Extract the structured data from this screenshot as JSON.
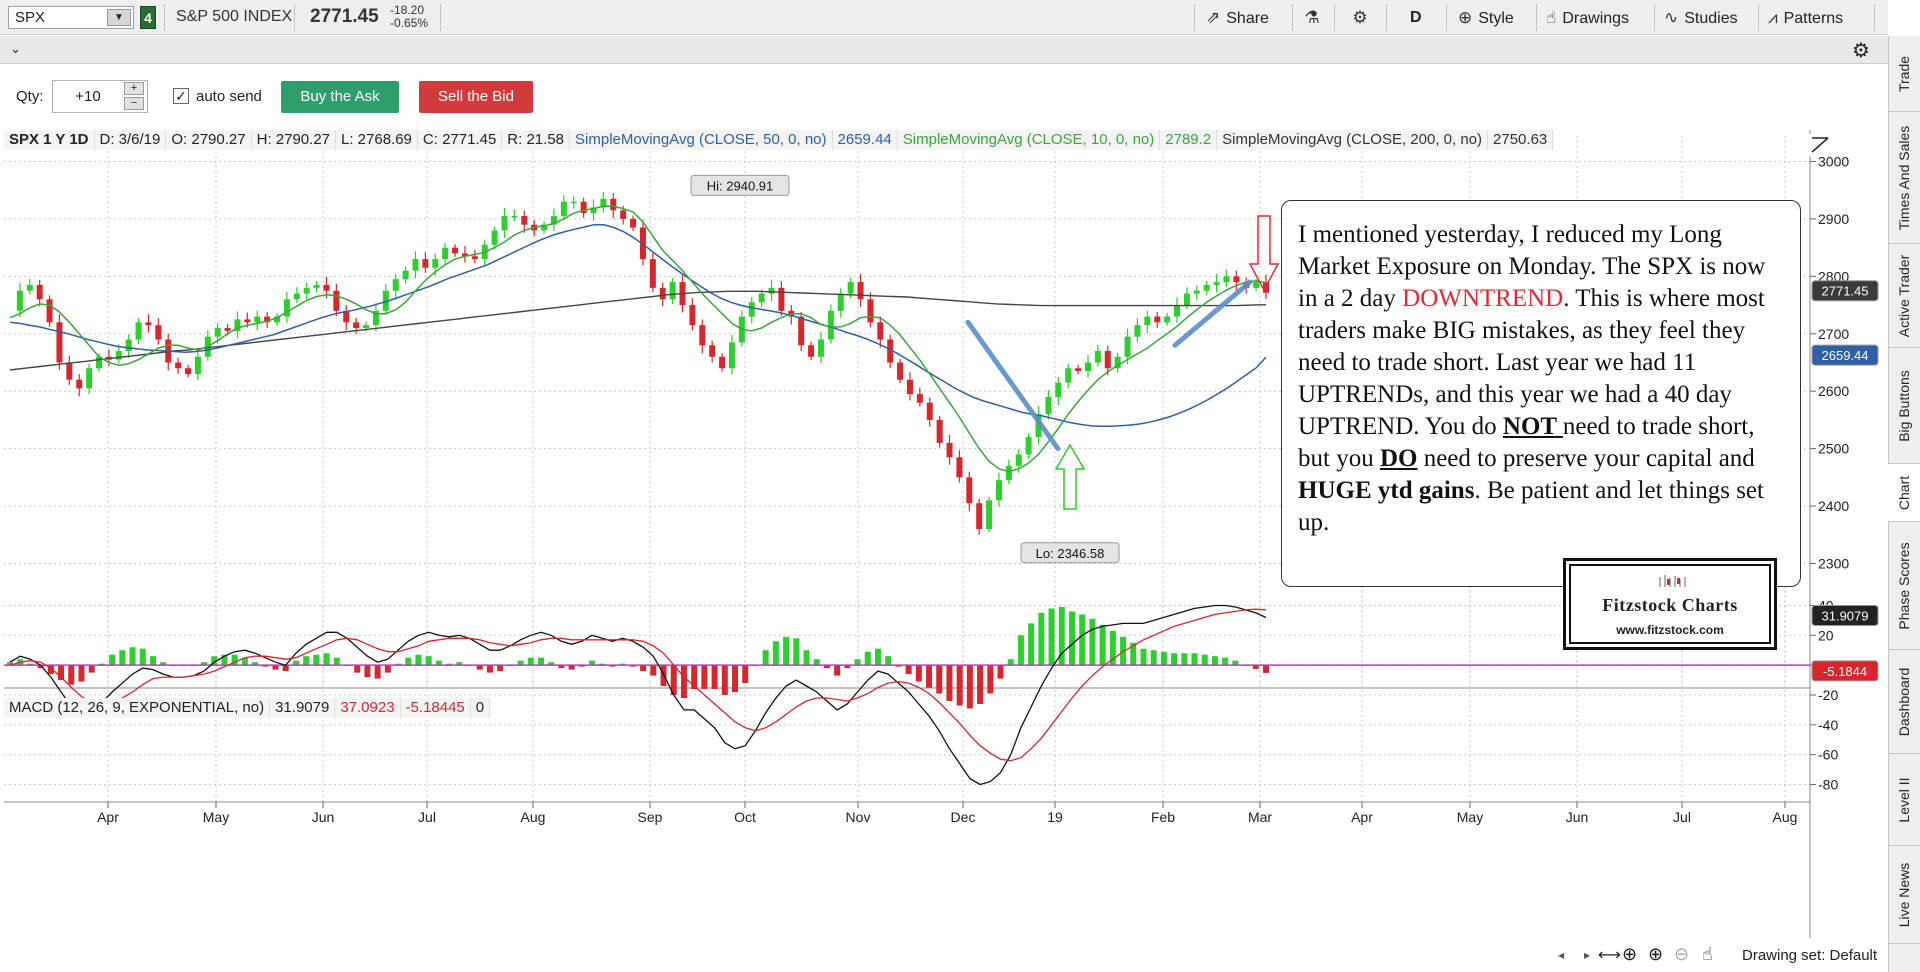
{
  "toolbar": {
    "symbol": "SPX",
    "link_number": "4",
    "index_name": "S&P 500 INDEX",
    "last_price": "2771.45",
    "change": "-18.20",
    "change_pct": "-0.65%",
    "share_label": "Share",
    "period_label": "D",
    "style_label": "Style",
    "drawings_label": "Drawings",
    "studies_label": "Studies",
    "patterns_label": "Patterns"
  },
  "order": {
    "qty_label": "Qty:",
    "qty_value": "+10",
    "auto_send_label": "auto send",
    "auto_send_checked": true,
    "buy_label": "Buy the Ask",
    "sell_label": "Sell the Bid"
  },
  "side_tabs": [
    "Trade",
    "Times And Sales",
    "Active Trader",
    "Big Buttons",
    "Chart",
    "Phase Scores",
    "Dashboard",
    "Level II",
    "Live News"
  ],
  "active_tab": "Chart",
  "legend": {
    "symbol_period": "SPX 1 Y 1D",
    "date": "D: 3/6/19",
    "open": "O: 2790.27",
    "high": "H: 2790.27",
    "low": "L: 2768.69",
    "close": "C: 2771.45",
    "range": "R: 21.58",
    "sma50_label": "SimpleMovingAvg (CLOSE, 50, 0, no)",
    "sma50_value": "2659.44",
    "sma10_label": "SimpleMovingAvg (CLOSE, 10, 0, no)",
    "sma10_value": "2789.2",
    "sma200_label": "SimpleMovingAvg (CLOSE, 200, 0, no)",
    "sma200_value": "2750.63"
  },
  "macd_legend": {
    "label": "MACD (12, 26, 9, EXPONENTIAL, no)",
    "value": "31.9079",
    "avg": "37.0923",
    "diff": "-5.18445",
    "zero": "0"
  },
  "note": {
    "p1": "I mentioned yesterday, I reduced my Long Market Exposure on Monday.  The SPX is now in a 2 day ",
    "downtrend": "DOWNTREND",
    "p2": ".  This is where most traders make BIG mistakes, as they feel they need to trade short.  Last year we had 11 UPTRENDs, and this year we had a 40 day UPTREND.  You do ",
    "not": "NOT ",
    "p3": "need to trade short, but you ",
    "do": "DO",
    "p4": " need to preserve your capital and ",
    "huge": "HUGE ytd gains",
    "p5": ".  Be patient and let things set up."
  },
  "logo": {
    "title": "Fitzstock Charts",
    "url": "www.fitzstock.com"
  },
  "drawing_set": "Drawing set: Default",
  "colors": {
    "up": "#2ccf2c",
    "down": "#d8262d",
    "sma10": "#3aa63a",
    "sma50": "#2f5fa6",
    "sma200": "#444444",
    "macd_value": "#111111",
    "macd_avg": "#d8262d",
    "zero_line": "#b040c0",
    "trend_line": "#5a8fc8"
  },
  "chart_data": [
    {
      "type": "candlestick",
      "title": "SPX 1 Y 1D",
      "x_ticks": [
        "Apr",
        "May",
        "Jun",
        "Jul",
        "Aug",
        "Sep",
        "Oct",
        "Nov",
        "Dec",
        "19",
        "Feb",
        "Mar",
        "Apr",
        "May",
        "Jun",
        "Jul",
        "Aug"
      ],
      "y_ticks": [
        2300,
        2400,
        2500,
        2600,
        2700,
        2800,
        2900,
        3000
      ],
      "ylim": [
        2280,
        3020
      ],
      "grid": true,
      "price_series": [
        2740,
        2775,
        2785,
        2760,
        2720,
        2650,
        2620,
        2605,
        2640,
        2660,
        2655,
        2670,
        2690,
        2720,
        2715,
        2690,
        2650,
        2640,
        2630,
        2660,
        2695,
        2710,
        2705,
        2725,
        2720,
        2730,
        2720,
        2730,
        2760,
        2770,
        2780,
        2785,
        2775,
        2740,
        2720,
        2710,
        2715,
        2740,
        2775,
        2795,
        2810,
        2830,
        2815,
        2830,
        2850,
        2840,
        2835,
        2830,
        2855,
        2880,
        2905,
        2905,
        2890,
        2880,
        2890,
        2905,
        2930,
        2930,
        2910,
        2920,
        2935,
        2915,
        2900,
        2885,
        2830,
        2780,
        2760,
        2790,
        2750,
        2715,
        2680,
        2660,
        2640,
        2685,
        2730,
        2755,
        2770,
        2780,
        2740,
        2730,
        2680,
        2660,
        2690,
        2740,
        2770,
        2790,
        2760,
        2720,
        2690,
        2650,
        2620,
        2595,
        2580,
        2550,
        2510,
        2485,
        2450,
        2405,
        2360,
        2410,
        2445,
        2470,
        2490,
        2520,
        2560,
        2590,
        2615,
        2640,
        2635,
        2650,
        2670,
        2640,
        2660,
        2695,
        2715,
        2730,
        2720,
        2730,
        2750,
        2770,
        2775,
        2785,
        2790,
        2800,
        2790,
        2780,
        2790,
        2771.45
      ],
      "sma10": [
        2728,
        2735,
        2745,
        2752,
        2750,
        2738,
        2720,
        2700,
        2680,
        2660,
        2650,
        2645,
        2648,
        2655,
        2665,
        2675,
        2680,
        2680,
        2675,
        2672,
        2678,
        2688,
        2700,
        2710,
        2715,
        2718,
        2722,
        2728,
        2738,
        2748,
        2758,
        2765,
        2768,
        2766,
        2760,
        2752,
        2742,
        2735,
        2735,
        2742,
        2755,
        2775,
        2793,
        2808,
        2820,
        2830,
        2835,
        2838,
        2842,
        2850,
        2860,
        2872,
        2880,
        2885,
        2888,
        2892,
        2900,
        2910,
        2915,
        2918,
        2922,
        2922,
        2918,
        2912,
        2895,
        2870,
        2845,
        2828,
        2810,
        2790,
        2770,
        2752,
        2735,
        2718,
        2708,
        2705,
        2710,
        2720,
        2728,
        2735,
        2735,
        2728,
        2716,
        2712,
        2712,
        2718,
        2728,
        2730,
        2728,
        2715,
        2698,
        2676,
        2654,
        2630,
        2605,
        2580,
        2555,
        2527,
        2500,
        2478,
        2465,
        2460,
        2465,
        2475,
        2490,
        2512,
        2535,
        2560,
        2582,
        2602,
        2620,
        2634,
        2645,
        2655,
        2665,
        2675,
        2688,
        2700,
        2713,
        2728,
        2742,
        2755,
        2766,
        2776,
        2784,
        2790,
        2792,
        2789.2
      ],
      "sma50": [
        2720,
        2718,
        2715,
        2712,
        2708,
        2704,
        2700,
        2695,
        2690,
        2686,
        2682,
        2678,
        2676,
        2674,
        2672,
        2671,
        2670,
        2669,
        2668,
        2669,
        2671,
        2674,
        2678,
        2682,
        2686,
        2690,
        2694,
        2698,
        2704,
        2710,
        2716,
        2722,
        2728,
        2733,
        2737,
        2740,
        2744,
        2748,
        2753,
        2758,
        2764,
        2770,
        2776,
        2782,
        2789,
        2796,
        2802,
        2808,
        2814,
        2820,
        2828,
        2836,
        2844,
        2852,
        2860,
        2867,
        2873,
        2878,
        2882,
        2886,
        2890,
        2890,
        2885,
        2878,
        2868,
        2856,
        2843,
        2830,
        2817,
        2805,
        2793,
        2782,
        2771,
        2762,
        2755,
        2750,
        2746,
        2743,
        2740,
        2737,
        2733,
        2728,
        2723,
        2718,
        2713,
        2708,
        2702,
        2697,
        2691,
        2684,
        2676,
        2667,
        2657,
        2647,
        2636,
        2626,
        2616,
        2606,
        2597,
        2589,
        2583,
        2578,
        2573,
        2568,
        2563,
        2560,
        2557,
        2553,
        2549,
        2545,
        2542,
        2540,
        2539,
        2539,
        2540,
        2541,
        2543,
        2546,
        2550,
        2555,
        2561,
        2568,
        2576,
        2585,
        2595,
        2605,
        2617,
        2629,
        2641,
        2659.44
      ],
      "sma200": [
        2637,
        2640,
        2643,
        2646,
        2649,
        2652,
        2655,
        2658,
        2661,
        2664,
        2667,
        2670,
        2672,
        2675,
        2678,
        2681,
        2684,
        2687,
        2690,
        2693,
        2696,
        2699,
        2702,
        2705,
        2708,
        2711,
        2714,
        2717,
        2720,
        2723,
        2726,
        2729,
        2732,
        2735,
        2738,
        2741,
        2744,
        2747,
        2750,
        2753,
        2756,
        2759,
        2762,
        2765,
        2768,
        2770,
        2772,
        2773,
        2774,
        2774,
        2774,
        2773,
        2772,
        2771,
        2770,
        2769,
        2768,
        2767,
        2766,
        2765,
        2764,
        2762,
        2760,
        2758,
        2756,
        2754,
        2752,
        2751,
        2750,
        2749,
        2749,
        2749,
        2749,
        2749,
        2749,
        2749,
        2749,
        2749,
        2749,
        2749,
        2749,
        2749,
        2749,
        2750,
        2750.63
      ],
      "annotations": [
        {
          "text": "Hi: 2940.91",
          "value": 2940.91
        },
        {
          "text": "Lo: 2346.58",
          "value": 2346.58
        },
        {
          "text": "2771.45",
          "value": 2771.45
        },
        {
          "text": "2659.44",
          "value": 2659.44
        }
      ]
    },
    {
      "type": "line",
      "title": "MACD (12, 26, 9, EXPONENTIAL, no)",
      "y_ticks": [
        40,
        20,
        0,
        -20,
        -40,
        -60,
        -80
      ],
      "ylim": [
        -85,
        45
      ],
      "annotations": [
        {
          "text": "31.9079",
          "value": 31.9079
        },
        {
          "text": "-5.1844",
          "value": -5.1844
        }
      ],
      "macd": [
        2,
        6,
        4,
        0,
        -8,
        -18,
        -28,
        -32,
        -30,
        -25,
        -18,
        -12,
        -6,
        -2,
        -3,
        -6,
        -8,
        -8,
        -7,
        -4,
        2,
        6,
        9,
        10,
        8,
        5,
        2,
        0,
        8,
        14,
        18,
        22,
        22,
        18,
        12,
        6,
        2,
        4,
        10,
        16,
        20,
        22,
        20,
        19,
        20,
        18,
        14,
        10,
        10,
        13,
        17,
        20,
        22,
        20,
        16,
        14,
        16,
        20,
        18,
        16,
        18,
        16,
        12,
        6,
        -6,
        -20,
        -30,
        -30,
        -36,
        -42,
        -52,
        -56,
        -54,
        -44,
        -32,
        -22,
        -14,
        -10,
        -14,
        -18,
        -24,
        -30,
        -26,
        -18,
        -10,
        -4,
        -6,
        -12,
        -18,
        -26,
        -34,
        -44,
        -56,
        -66,
        -76,
        -80,
        -78,
        -72,
        -60,
        -42,
        -28,
        -14,
        -2,
        8,
        14,
        20,
        24,
        26,
        27,
        28,
        28,
        28,
        30,
        32,
        34,
        36,
        38,
        39,
        40,
        40,
        39,
        37,
        35,
        31.9079
      ],
      "signal": [
        0,
        2,
        3,
        2,
        -2,
        -8,
        -15,
        -21,
        -25,
        -26,
        -25,
        -22,
        -18,
        -13,
        -9,
        -8,
        -8,
        -8,
        -7,
        -6,
        -4,
        -1,
        2,
        5,
        6,
        6,
        5,
        4,
        5,
        8,
        11,
        14,
        17,
        18,
        17,
        14,
        11,
        9,
        9,
        11,
        13,
        16,
        17,
        18,
        18,
        18,
        17,
        15,
        14,
        13,
        14,
        15,
        17,
        18,
        18,
        17,
        17,
        17,
        17,
        17,
        17,
        17,
        16,
        13,
        8,
        0,
        -8,
        -14,
        -20,
        -26,
        -32,
        -38,
        -42,
        -44,
        -42,
        -38,
        -33,
        -28,
        -24,
        -22,
        -22,
        -23,
        -24,
        -22,
        -19,
        -15,
        -12,
        -11,
        -12,
        -15,
        -19,
        -25,
        -32,
        -39,
        -47,
        -54,
        -59,
        -63,
        -64,
        -62,
        -56,
        -49,
        -40,
        -31,
        -22,
        -14,
        -7,
        -1,
        4,
        9,
        13,
        17,
        20,
        23,
        26,
        28,
        30,
        32,
        34,
        35,
        36,
        37,
        37.5,
        37.0923
      ],
      "zero_line": 0
    }
  ]
}
